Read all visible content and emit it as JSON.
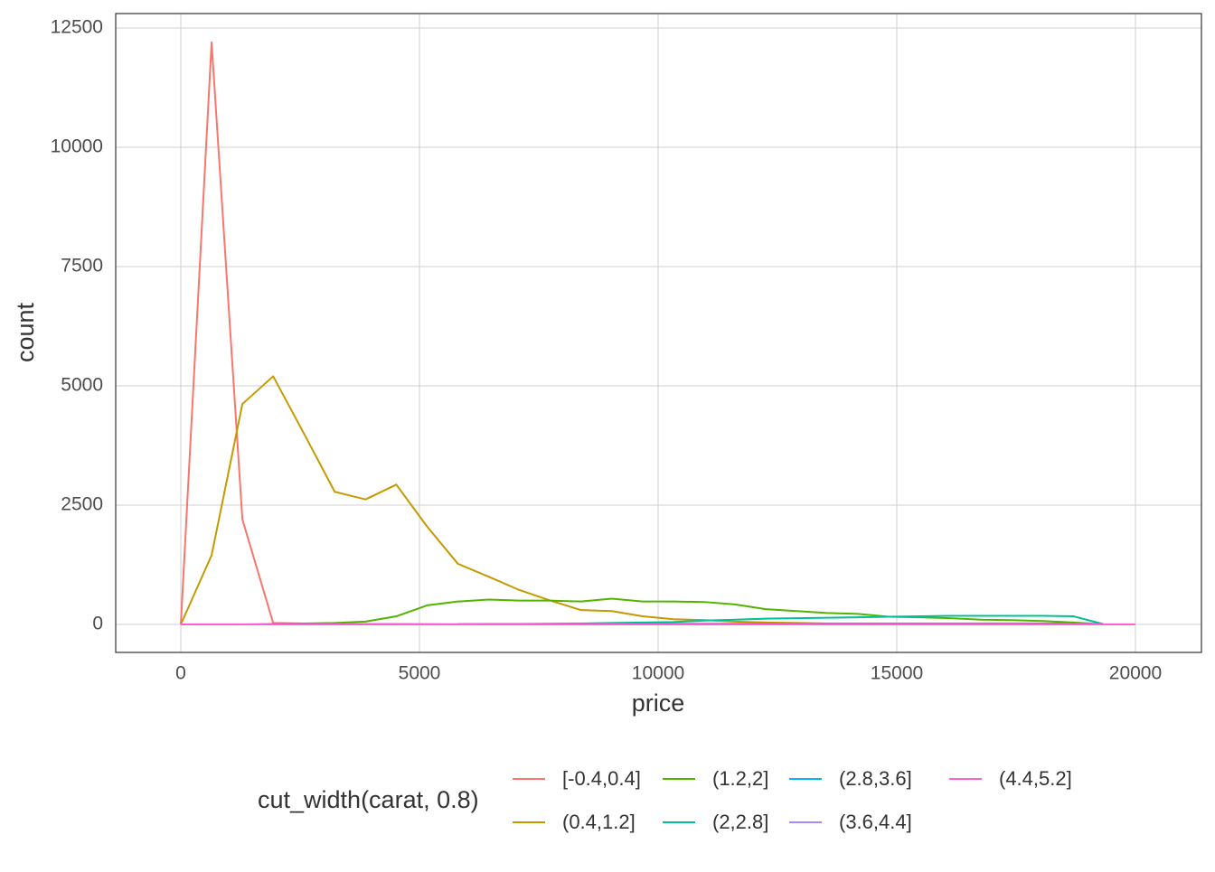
{
  "chart_data": {
    "type": "line",
    "x_label": "price",
    "y_label": "count",
    "legend_title": "cut_width(carat, 0.8)",
    "x": [
      0,
      645,
      1290,
      1935,
      2580,
      3225,
      3870,
      4515,
      5160,
      5805,
      6450,
      7095,
      7740,
      8385,
      9030,
      9675,
      10320,
      10965,
      11610,
      12255,
      12900,
      13545,
      14190,
      14835,
      15480,
      16125,
      16770,
      17415,
      18060,
      18705,
      19350,
      19995
    ],
    "series": [
      {
        "name": "[-0.4,0.4]",
        "color": "#F8766D",
        "values": [
          0,
          12200,
          2200,
          30,
          20,
          15,
          10,
          10,
          8,
          5,
          5,
          5,
          5,
          5,
          5,
          5,
          5,
          5,
          5,
          5,
          5,
          5,
          5,
          5,
          5,
          5,
          5,
          5,
          5,
          5,
          0,
          null
        ]
      },
      {
        "name": "(0.4,1.2]",
        "color": "#C49A00",
        "values": [
          0,
          1450,
          4620,
          5200,
          4000,
          2780,
          2620,
          2930,
          2050,
          1270,
          1000,
          720,
          500,
          300,
          280,
          170,
          110,
          90,
          60,
          40,
          30,
          20,
          15,
          10,
          10,
          5,
          5,
          5,
          5,
          5,
          0,
          null
        ]
      },
      {
        "name": "(1.2,2]",
        "color": "#53B400",
        "values": [
          0,
          0,
          0,
          10,
          20,
          30,
          60,
          170,
          400,
          480,
          520,
          500,
          500,
          480,
          540,
          480,
          480,
          470,
          420,
          320,
          280,
          240,
          220,
          160,
          150,
          130,
          100,
          90,
          70,
          40,
          0,
          null
        ]
      },
      {
        "name": "(2,2.8]",
        "color": "#00C094",
        "values": [
          null,
          null,
          null,
          null,
          null,
          null,
          null,
          null,
          null,
          5,
          10,
          10,
          15,
          20,
          30,
          40,
          50,
          80,
          100,
          120,
          130,
          140,
          150,
          160,
          170,
          180,
          180,
          180,
          180,
          170,
          0,
          null
        ]
      },
      {
        "name": "(2.8,3.6]",
        "color": "#00B6EB",
        "values": [
          null,
          null,
          null,
          null,
          null,
          null,
          null,
          null,
          null,
          5,
          5,
          5,
          10,
          10,
          10,
          10,
          15,
          15,
          15,
          20,
          20,
          20,
          20,
          20,
          20,
          20,
          20,
          20,
          20,
          20,
          0,
          null
        ]
      },
      {
        "name": "(3.6,4.4]",
        "color": "#A58AFF",
        "values": [
          null,
          null,
          null,
          null,
          null,
          null,
          null,
          null,
          null,
          0,
          0,
          0,
          0,
          0,
          0,
          0,
          0,
          1,
          1,
          1,
          1,
          1,
          1,
          1,
          1,
          1,
          1,
          1,
          1,
          1,
          0,
          null
        ]
      },
      {
        "name": "(4.4,5.2]",
        "color": "#FB61D7",
        "values": [
          0,
          0,
          0,
          0,
          0,
          0,
          0,
          0,
          0,
          0,
          0,
          0,
          0,
          0,
          0,
          0,
          0,
          0,
          0,
          0,
          0,
          0,
          0,
          0,
          0,
          0,
          0,
          0,
          0,
          0,
          0,
          0
        ]
      }
    ],
    "xlim": [
      -1364,
      21383
    ],
    "ylim": [
      -587,
      12803
    ],
    "xticks": [
      0,
      5000,
      10000,
      15000,
      20000
    ],
    "yticks": [
      0,
      2500,
      5000,
      7500,
      10000,
      12500
    ],
    "grid": true,
    "legend_position": "bottom"
  }
}
